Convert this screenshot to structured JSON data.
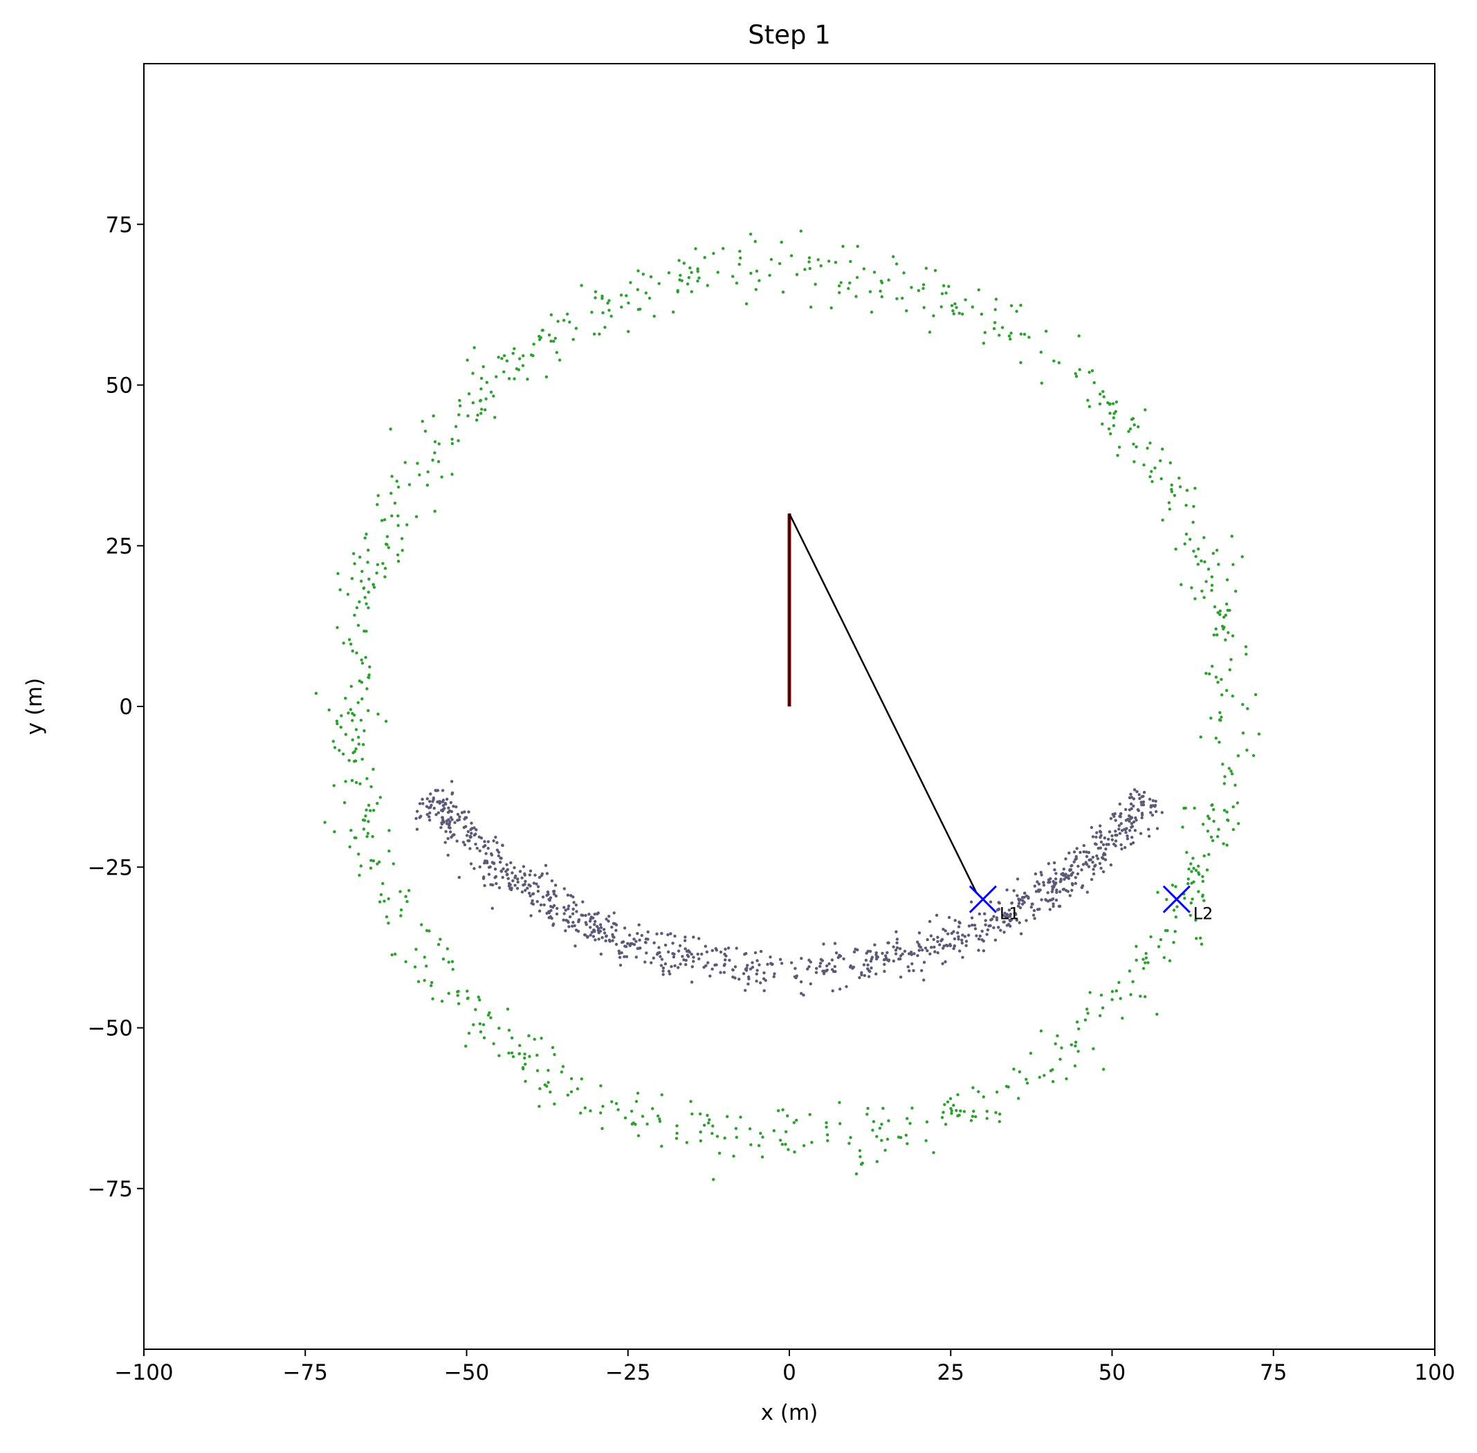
{
  "chart_data": {
    "type": "scatter",
    "title": "Step 1",
    "xlabel": "x (m)",
    "ylabel": "y (m)",
    "xlim": [
      -100,
      100
    ],
    "ylim": [
      -100,
      100
    ],
    "xticks": [
      -100,
      -75,
      -50,
      -25,
      0,
      25,
      50,
      75,
      100
    ],
    "yticks": [
      75,
      50,
      25,
      0,
      -25,
      -50,
      -75
    ],
    "xtick_labels": [
      "−100",
      "−75",
      "−50",
      "−25",
      "0",
      "25",
      "50",
      "75",
      "100"
    ],
    "ytick_labels": [
      "75",
      "50",
      "25",
      "0",
      "−25",
      "−50",
      "−75"
    ],
    "grid": false,
    "series": [
      {
        "kind": "points",
        "color": "#2ca02c",
        "shape": "ring",
        "center": [
          0,
          0
        ],
        "radius": 68,
        "spread": 2.2,
        "count": 900
      },
      {
        "kind": "points",
        "color": "#5a5a78",
        "shape": "arc",
        "center": [
          0,
          30
        ],
        "radius": 71,
        "angle_range_deg": [
          -142,
          -38
        ],
        "spread": 1.6,
        "count": 1000
      }
    ],
    "trajectory": {
      "color": "#8b0000",
      "points": [
        [
          0,
          0
        ],
        [
          0,
          30
        ]
      ]
    },
    "measurement_line": {
      "color": "#000000",
      "from": [
        0,
        30
      ],
      "to": [
        29,
        -29
      ]
    },
    "landmarks": [
      {
        "label": "L1",
        "x": 30,
        "y": -30,
        "color": "#0000ff"
      },
      {
        "label": "L2",
        "x": 60,
        "y": -30,
        "color": "#0000ff"
      }
    ]
  }
}
